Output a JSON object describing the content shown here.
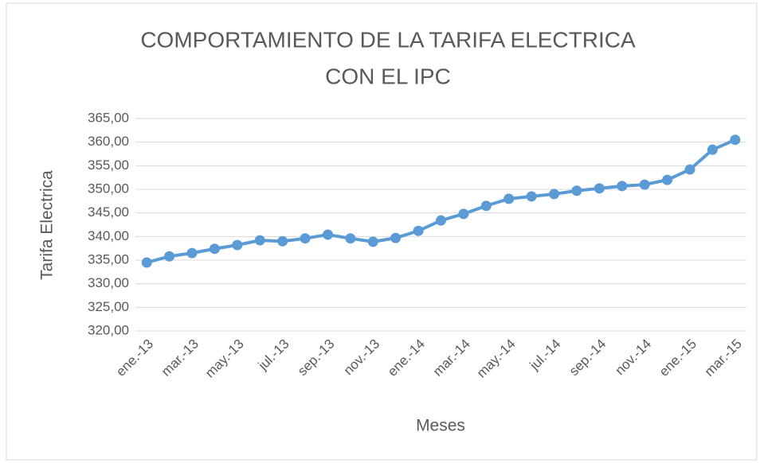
{
  "chart_data": {
    "type": "line",
    "title": [
      "COMPORTAMIENTO DE LA TARIFA ELECTRICA",
      "CON EL IPC"
    ],
    "x_label": "Meses",
    "y_label": "Tarifa Electrica",
    "categories": [
      "ene.-13",
      null,
      "mar.-13",
      null,
      "may.-13",
      null,
      "jul.-13",
      null,
      "sep.-13",
      null,
      "nov.-13",
      null,
      "ene.-14",
      null,
      "mar.-14",
      null,
      "may.-14",
      null,
      "jul.-14",
      null,
      "sep.-14",
      null,
      "nov.-14",
      null,
      "ene.-15",
      null,
      "mar.-15"
    ],
    "series": [
      {
        "name": "Tarifa Electrica",
        "color": "#5b9bd5",
        "values": [
          334.5,
          335.8,
          336.5,
          337.4,
          338.2,
          339.2,
          339.0,
          339.6,
          340.4,
          339.6,
          338.9,
          339.7,
          341.2,
          343.4,
          344.8,
          346.5,
          348.0,
          348.5,
          349.0,
          349.7,
          350.2,
          350.7,
          351.0,
          352.0,
          354.2,
          358.4,
          360.5
        ]
      }
    ],
    "ylim": [
      320,
      365
    ],
    "yticks": [
      {
        "value": 320,
        "label": "320,00"
      },
      {
        "value": 325,
        "label": "325,00"
      },
      {
        "value": 330,
        "label": "330,00"
      },
      {
        "value": 335,
        "label": "335,00"
      },
      {
        "value": 340,
        "label": "340,00"
      },
      {
        "value": 345,
        "label": "345,00"
      },
      {
        "value": 350,
        "label": "350,00"
      },
      {
        "value": 355,
        "label": "355,00"
      },
      {
        "value": 360,
        "label": "360,00"
      },
      {
        "value": 365,
        "label": "365,00"
      }
    ],
    "grid": true
  }
}
